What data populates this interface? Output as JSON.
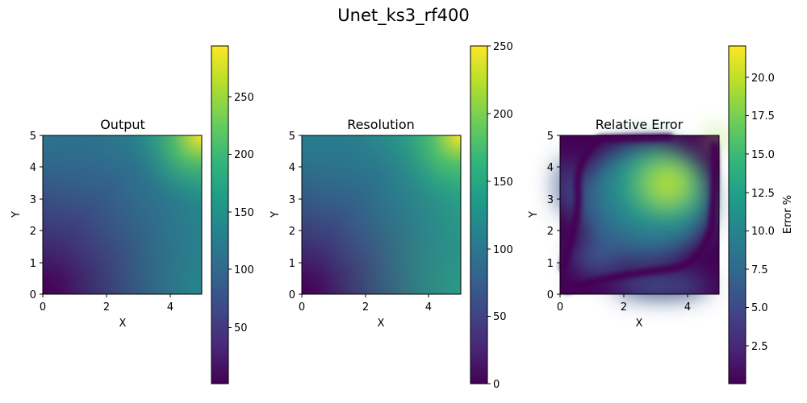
{
  "figure": {
    "suptitle": "Unet_ks3_rf400"
  },
  "colormap": {
    "name": "viridis",
    "stops": [
      "#440154",
      "#482878",
      "#3e4989",
      "#31688e",
      "#26828e",
      "#1f9e89",
      "#35b779",
      "#6ece58",
      "#b5de2b",
      "#fde725"
    ]
  },
  "chart_data": [
    {
      "type": "heatmap",
      "title": "Output",
      "xlabel": "X",
      "ylabel": "Y",
      "xlim": [
        0,
        5
      ],
      "ylim": [
        0,
        5
      ],
      "xticks": [
        "0",
        "2",
        "4"
      ],
      "yticks": [
        "0",
        "1",
        "2",
        "3",
        "4",
        "5"
      ],
      "colorbar": {
        "label": "",
        "range": [
          5,
          292
        ],
        "ticks": [
          "50",
          "100",
          "150",
          "200",
          "250"
        ]
      },
      "field_samples": {
        "origin": 5,
        "center": 60,
        "top_right": 292,
        "top_left": 120,
        "bottom_right": 150
      }
    },
    {
      "type": "heatmap",
      "title": "Resolution",
      "xlabel": "X",
      "ylabel": "Y",
      "xlim": [
        0,
        5
      ],
      "ylim": [
        0,
        5
      ],
      "xticks": [
        "0",
        "2",
        "4"
      ],
      "yticks": [
        "0",
        "1",
        "2",
        "3",
        "4",
        "5"
      ],
      "colorbar": {
        "label": "",
        "range": [
          0,
          250
        ],
        "ticks": [
          "0",
          "50",
          "100",
          "150",
          "200",
          "250"
        ]
      },
      "field_samples": {
        "origin": 0,
        "center": 60,
        "top_right": 250,
        "top_left": 110,
        "bottom_right": 150
      }
    },
    {
      "type": "heatmap",
      "title": "Relative Error",
      "xlabel": "X",
      "ylabel": "Y",
      "xlim": [
        0,
        5
      ],
      "ylim": [
        0,
        5
      ],
      "xticks": [
        "0",
        "2",
        "4"
      ],
      "yticks": [
        "0",
        "1",
        "2",
        "3",
        "4",
        "5"
      ],
      "colorbar": {
        "label": "Error %",
        "range": [
          0,
          22
        ],
        "ticks": [
          "2.5",
          "5.0",
          "7.5",
          "10.0",
          "12.5",
          "15.0",
          "17.5",
          "20.0"
        ]
      },
      "field_samples": {
        "peak_at": [
          3.4,
          3.4
        ],
        "peak": 20.5,
        "min_along_edges": 0.5
      }
    }
  ]
}
